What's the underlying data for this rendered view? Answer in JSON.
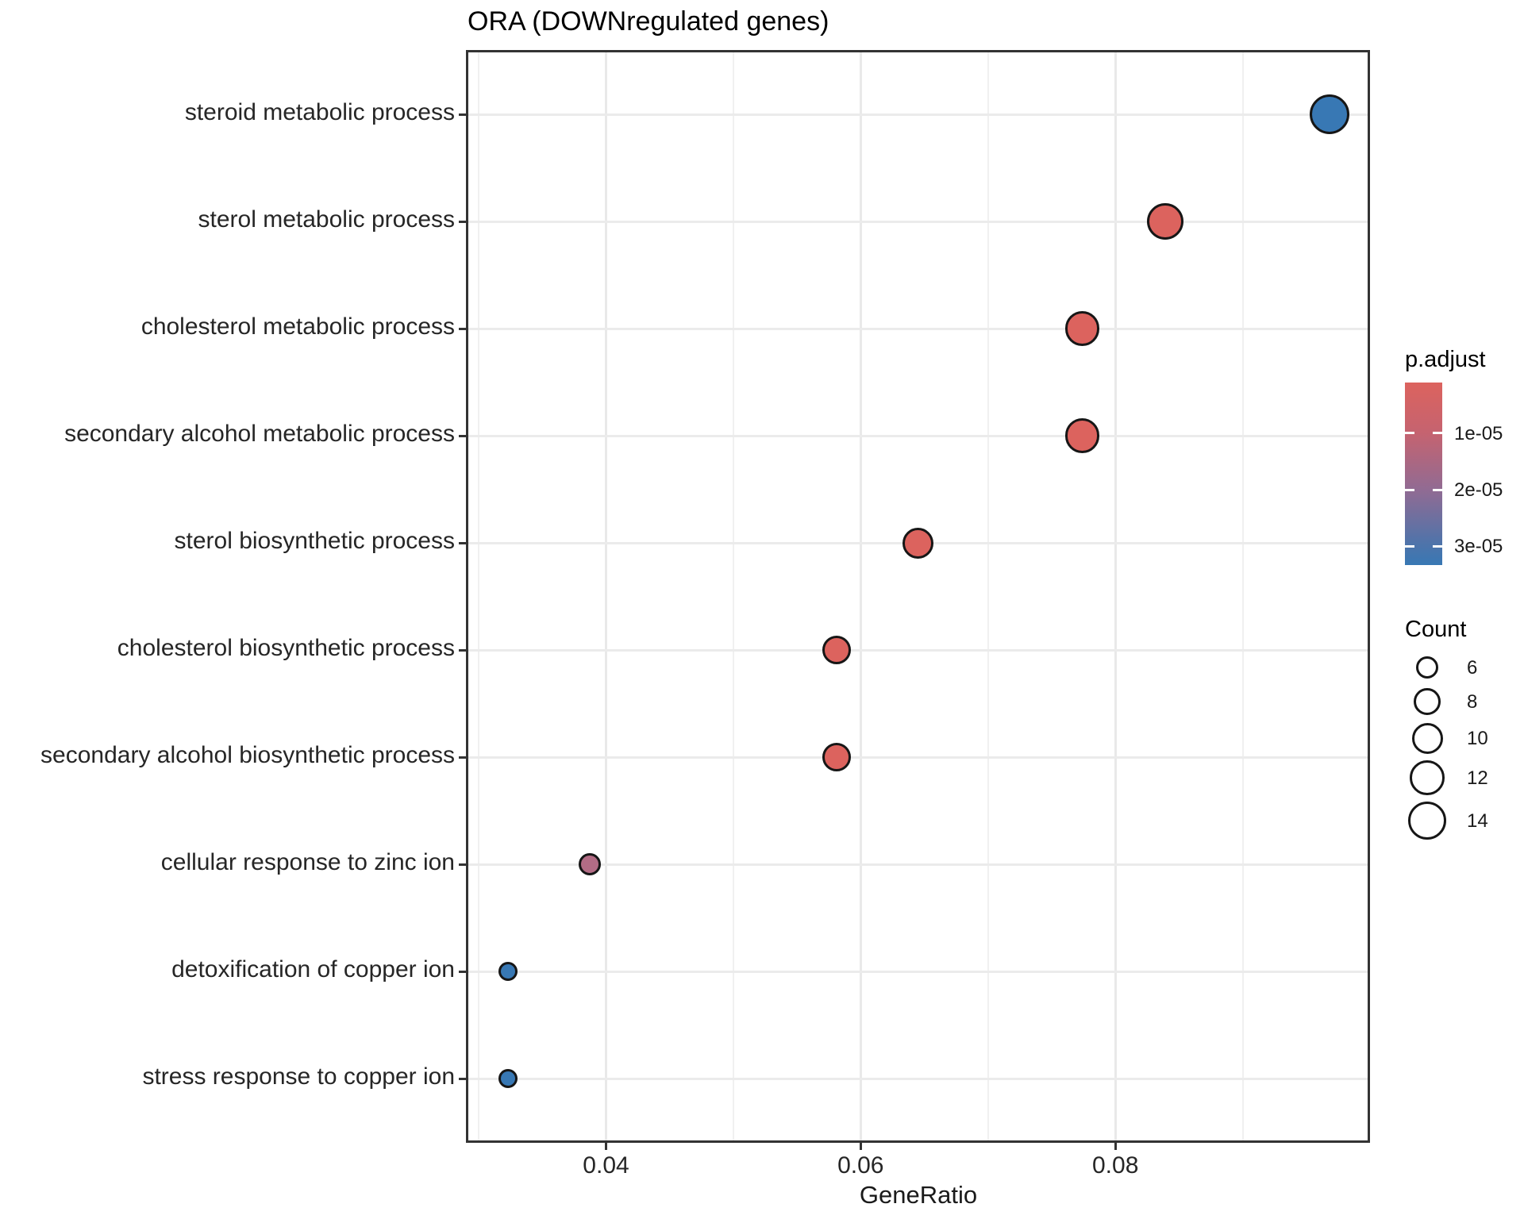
{
  "chart_data": {
    "type": "scatter",
    "title": "ORA (DOWNregulated genes)",
    "xlabel": "GeneRatio",
    "ylabel": "",
    "x_axis": {
      "range": [
        0.029,
        0.1
      ],
      "ticks": [
        {
          "value": 0.04,
          "label": "0.04"
        },
        {
          "value": 0.06,
          "label": "0.06"
        },
        {
          "value": 0.08,
          "label": "0.08"
        }
      ],
      "minor_ticks": [
        0.03,
        0.05,
        0.07,
        0.09
      ]
    },
    "grid": "on",
    "points": [
      {
        "term": "steroid metabolic process",
        "gene_ratio": 0.0968,
        "count": 15,
        "p_adjust": 3.3e-05,
        "color": "#3878B4"
      },
      {
        "term": "sterol metabolic process",
        "gene_ratio": 0.0839,
        "count": 13,
        "p_adjust": 2e-06,
        "color": "#DC635E"
      },
      {
        "term": "cholesterol metabolic process",
        "gene_ratio": 0.0774,
        "count": 12,
        "p_adjust": 2e-06,
        "color": "#DC635E"
      },
      {
        "term": "secondary alcohol metabolic process",
        "gene_ratio": 0.0774,
        "count": 12,
        "p_adjust": 2e-06,
        "color": "#DC635E"
      },
      {
        "term": "sterol biosynthetic process",
        "gene_ratio": 0.0645,
        "count": 10,
        "p_adjust": 3e-06,
        "color": "#DC635E"
      },
      {
        "term": "cholesterol biosynthetic process",
        "gene_ratio": 0.0581,
        "count": 9,
        "p_adjust": 4e-06,
        "color": "#DC635E"
      },
      {
        "term": "secondary alcohol biosynthetic process",
        "gene_ratio": 0.0581,
        "count": 9,
        "p_adjust": 4e-06,
        "color": "#DC635E"
      },
      {
        "term": "cellular response to zinc ion",
        "gene_ratio": 0.0387,
        "count": 6,
        "p_adjust": 1.5e-05,
        "color": "#B36C85"
      },
      {
        "term": "detoxification of copper ion",
        "gene_ratio": 0.0323,
        "count": 5,
        "p_adjust": 3.2e-05,
        "color": "#3878B4"
      },
      {
        "term": "stress response to copper ion",
        "gene_ratio": 0.0323,
        "count": 5,
        "p_adjust": 3.2e-05,
        "color": "#3878B4"
      }
    ],
    "legend_padjust": {
      "title": "p.adjust",
      "ticks": [
        {
          "label": "1e-05",
          "pos": 0.278
        },
        {
          "label": "2e-05",
          "pos": 0.587
        },
        {
          "label": "3e-05",
          "pos": 0.896
        }
      ],
      "gradient": [
        {
          "color": "#DC635E",
          "pos": 0
        },
        {
          "color": "#C56370",
          "pos": 0.278
        },
        {
          "color": "#916B93",
          "pos": 0.587
        },
        {
          "color": "#4C74AB",
          "pos": 0.896
        },
        {
          "color": "#3878B4",
          "pos": 1
        }
      ]
    },
    "legend_count": {
      "title": "Count",
      "items": [
        {
          "count": 6,
          "label": "6"
        },
        {
          "count": 8,
          "label": "8"
        },
        {
          "count": 10,
          "label": "10"
        },
        {
          "count": 12,
          "label": "12"
        },
        {
          "count": 14,
          "label": "14"
        }
      ]
    }
  }
}
